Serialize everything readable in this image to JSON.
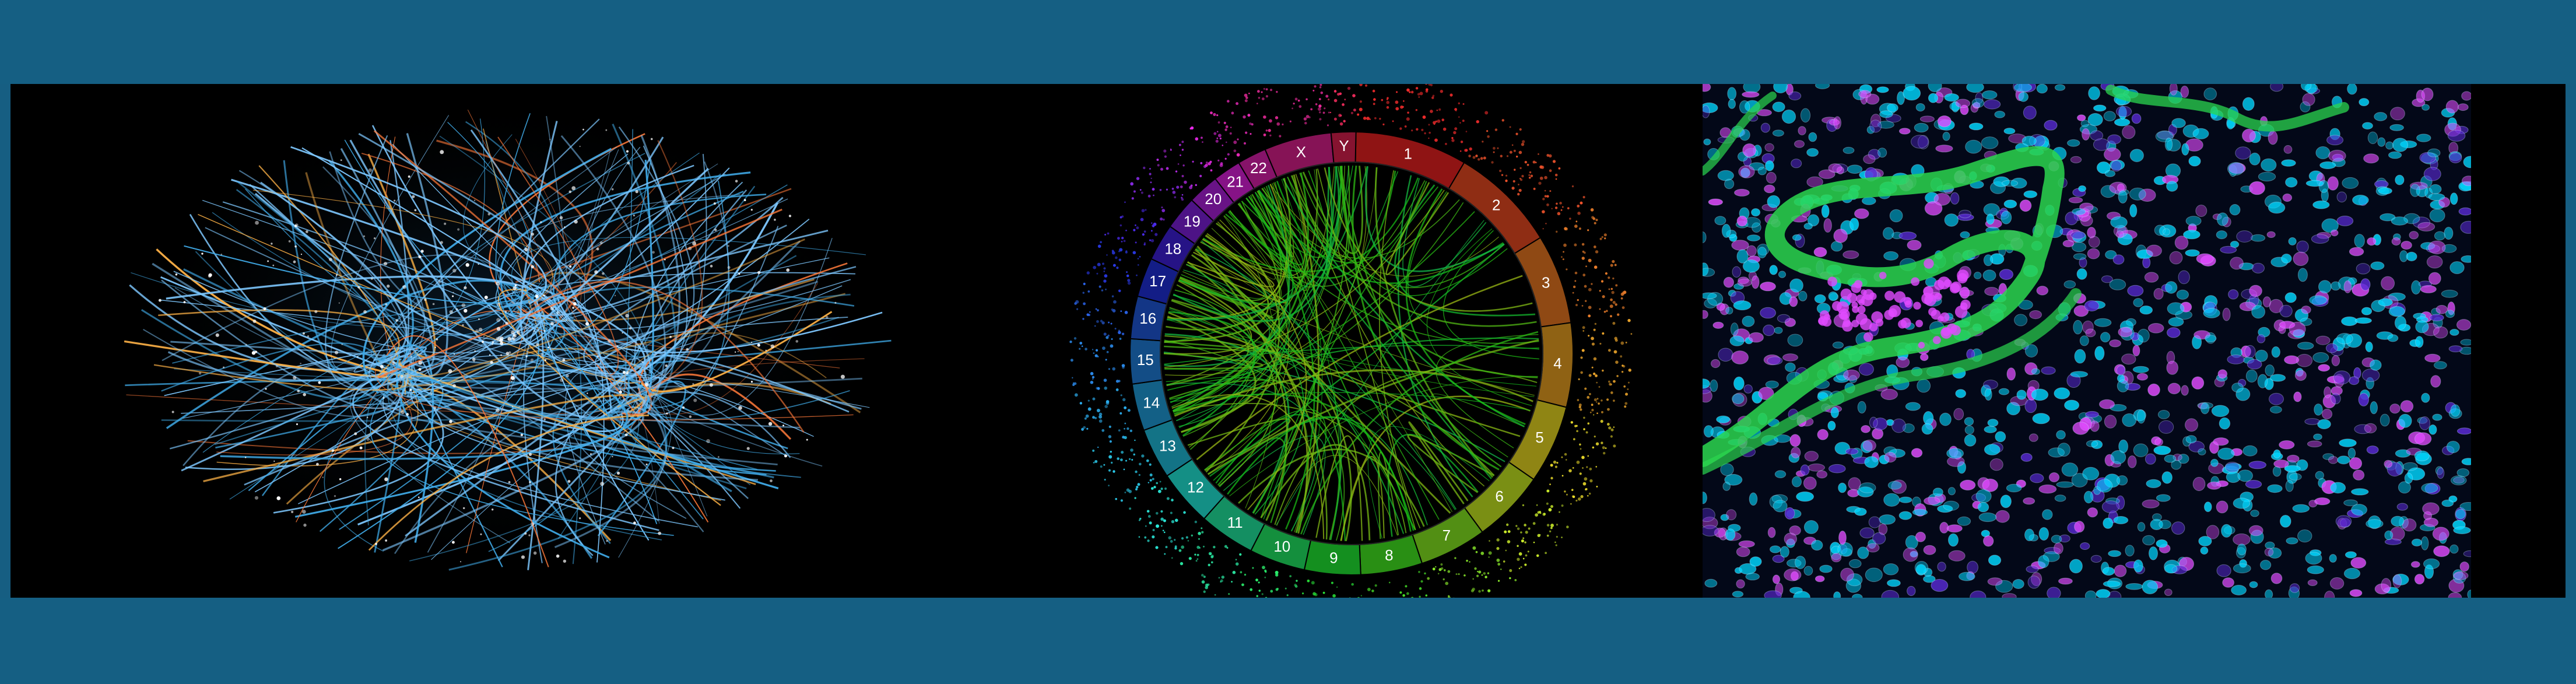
{
  "banner": {
    "background_color": "#155f83",
    "panels": [
      {
        "name": "brain-network-illustration",
        "colors": [
          "#7ec8ff",
          "#3fa9e6",
          "#ff7a3a",
          "#ffb347",
          "#ffffff"
        ]
      },
      {
        "name": "circos-genome-plot",
        "chromosomes": [
          "1",
          "2",
          "3",
          "4",
          "5",
          "6",
          "7",
          "8",
          "9",
          "10",
          "11",
          "12",
          "13",
          "14",
          "15",
          "16",
          "17",
          "18",
          "19",
          "20",
          "21",
          "22",
          "X",
          "Y"
        ]
      },
      {
        "name": "fluorescence-tissue-image",
        "colors": [
          "#00d7ff",
          "#2bd64f",
          "#e14bff",
          "#5a2bd6"
        ]
      }
    ]
  }
}
